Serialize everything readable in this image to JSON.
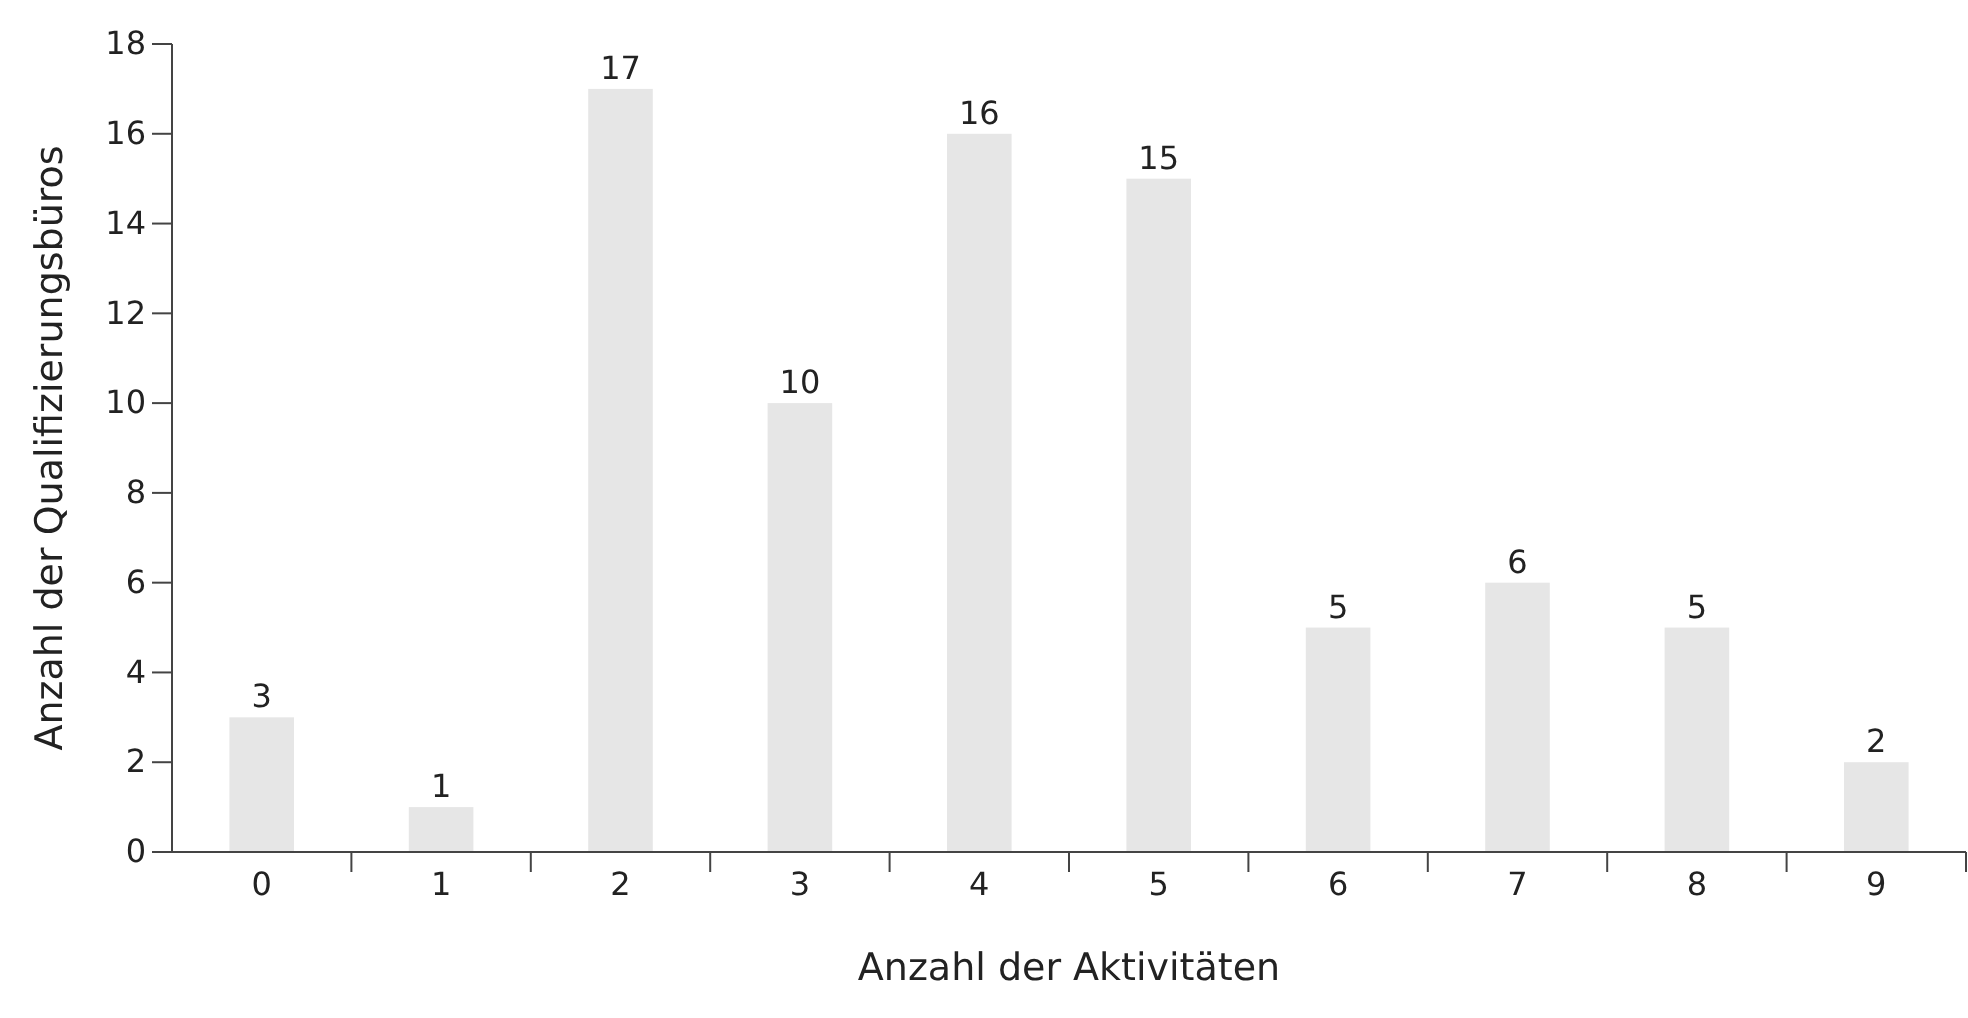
{
  "chart_data": {
    "type": "bar",
    "xlabel": "Anzahl der Aktivitäten",
    "ylabel": "Anzahl der Qualifizierungsbüros",
    "categories": [
      "0",
      "1",
      "2",
      "3",
      "4",
      "5",
      "6",
      "7",
      "8",
      "9"
    ],
    "values": [
      3,
      1,
      17,
      10,
      16,
      15,
      5,
      6,
      5,
      2
    ],
    "color": "#e6e6e6",
    "ylim": [
      0,
      18
    ],
    "yticks": [
      0,
      2,
      4,
      6,
      8,
      10,
      12,
      14,
      16,
      18
    ],
    "grid": false,
    "data_labels": true
  }
}
